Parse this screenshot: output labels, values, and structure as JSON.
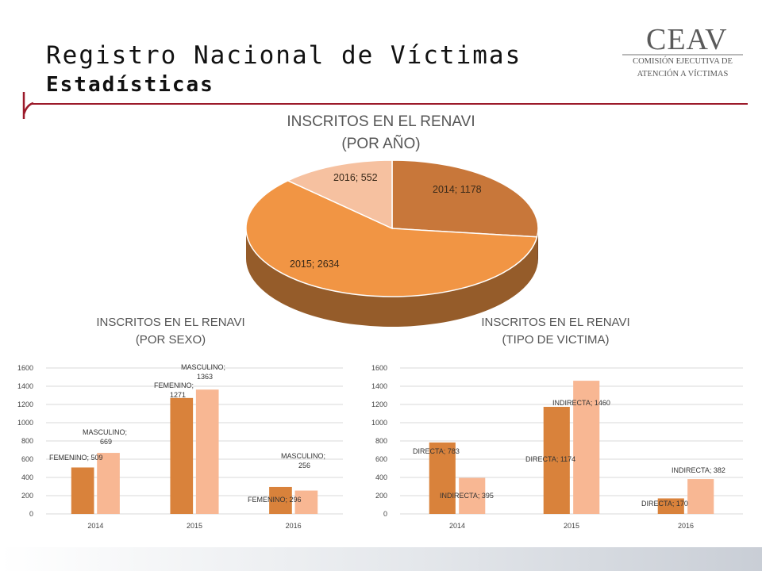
{
  "header": {
    "title": "Registro Nacional de Víctimas",
    "subtitle": "Estadísticas"
  },
  "logo": {
    "main": "CEAV",
    "line1": "COMISIÓN EJECUTIVA DE",
    "line2": "ATENCIÓN A VÍCTIMAS"
  },
  "colors": {
    "accent_rule": "#9c1a2a",
    "orange_dark": "#d9823b",
    "orange_light": "#f8b793",
    "pie_2014": "#c8773a",
    "pie_2015": "#f19544",
    "pie_2016": "#f6c1a0"
  },
  "chart_data": [
    {
      "type": "pie",
      "title_line1": "INSCRITOS EN EL RENAVI",
      "title_line2": "(POR AÑO)",
      "categories": [
        "2014",
        "2015",
        "2016"
      ],
      "values": [
        1178,
        2634,
        552
      ],
      "labels": [
        "2014; 1178",
        "2015; 2634",
        "2016; 552"
      ]
    },
    {
      "type": "bar",
      "title_line1": "INSCRITOS EN EL RENAVI",
      "title_line2": "(POR SEXO)",
      "categories": [
        "2014",
        "2015",
        "2016"
      ],
      "ylim": [
        0,
        1600
      ],
      "yticks": [
        "0",
        "200",
        "400",
        "600",
        "800",
        "1000",
        "1200",
        "1400",
        "1600"
      ],
      "series": [
        {
          "name": "FEMENINO",
          "values": [
            509,
            1271,
            296
          ],
          "labels": [
            "FEMENINO; 509",
            "FEMENINO; 1271",
            "FEMENINO; 296"
          ]
        },
        {
          "name": "MASCULINO",
          "values": [
            669,
            1363,
            256
          ],
          "labels": [
            "MASCULINO; 669",
            "MASCULINO; 1363",
            "MASCULINO; 256"
          ]
        }
      ]
    },
    {
      "type": "bar",
      "title_line1": "INSCRITOS EN EL RENAVI",
      "title_line2": "(TIPO DE VICTIMA)",
      "categories": [
        "2014",
        "2015",
        "2016"
      ],
      "ylim": [
        0,
        1600
      ],
      "yticks": [
        "0",
        "200",
        "400",
        "600",
        "800",
        "1000",
        "1200",
        "1400",
        "1600"
      ],
      "series": [
        {
          "name": "DIRECTA",
          "values": [
            783,
            1174,
            170
          ],
          "labels": [
            "DIRECTA; 783",
            "DIRECTA; 1174",
            "DIRECTA; 170"
          ]
        },
        {
          "name": "INDIRECTA",
          "values": [
            395,
            1460,
            382
          ],
          "labels": [
            "INDIRECTA; 395",
            "INDIRECTA; 1460",
            "INDIRECTA; 382"
          ]
        }
      ]
    }
  ]
}
